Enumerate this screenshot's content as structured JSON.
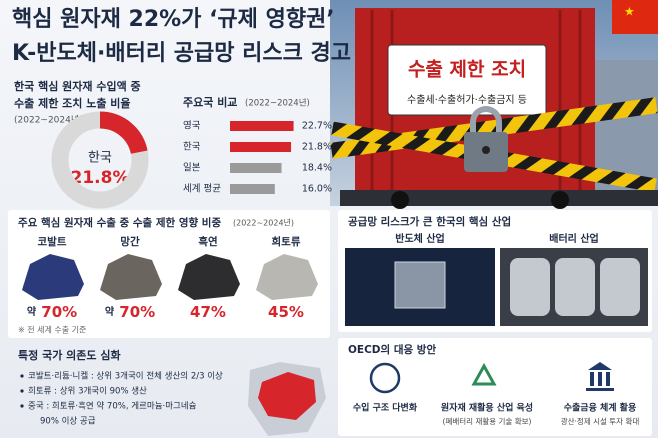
{
  "header": {
    "title_lines": [
      "핵심 원자재 22%가 ‘규제 영향권’",
      "K-반도체·배터리 공급망 리스크 경고"
    ]
  },
  "donut": {
    "label_lines": [
      "한국 핵심 원자재 수입액 중",
      "수출 제한 조치 노출 비율"
    ],
    "period": "(2022~2024년)",
    "center_label": "한국",
    "value": 21.8,
    "value_label": "21.8%",
    "max": 100,
    "color": "#d6262b",
    "track_color": "#d9d9d9"
  },
  "bar_chart": {
    "title": "주요국 비교",
    "period": "(2022~2024년)",
    "categories": [
      "영국",
      "한국",
      "일본",
      "세계 평균"
    ],
    "values": [
      22.7,
      21.8,
      18.4,
      16.0
    ],
    "value_labels": [
      "22.7%",
      "21.8%",
      "18.4%",
      "16.0%"
    ],
    "colors": [
      "#d6262b",
      "#d6262b",
      "#9a9a9a",
      "#9a9a9a"
    ],
    "xlim": [
      0,
      25
    ]
  },
  "minerals": {
    "title": "주요 핵심 원자재 수출 중 수출 제한 영향 비중",
    "period": "(2022~2024년)",
    "items": [
      {
        "name": "코발트",
        "prefix": "약",
        "share": "70%"
      },
      {
        "name": "망간",
        "prefix": "약",
        "share": "70%"
      },
      {
        "name": "흑연",
        "share": "47%"
      },
      {
        "name": "희토류",
        "share": "45%"
      }
    ],
    "note": "※ 전 세계 수출 기준"
  },
  "dependency": {
    "title": "특정 국가 의존도 심화",
    "bullets": [
      [
        "코발트·리튬·니켈 : 상위 3개국이 전체 생산의 2/3 이상"
      ],
      [
        "희토류 : 상위 3개국이 90% 생산"
      ],
      [
        "중국 : 희토류·흑연 약 70%, 게르마늄·마그네슘",
        "90% 이상 공급"
      ]
    ]
  },
  "photo": {
    "sign_title": "수출 제한 조치",
    "sign_subtitle": "수출세·수출허가·수출금지 등"
  },
  "supply_chain": {
    "title": "공급망 리스크가 큰 한국의 핵심 산업",
    "industries": [
      "반도체 산업",
      "배터리 산업"
    ]
  },
  "oecd": {
    "title": "OECD의 대응 방안",
    "measures": [
      {
        "label": "수입 구조 다변화"
      },
      {
        "label": "원자재 재활용 산업 육성",
        "detail": "(폐배터리 재활용 기술 확보)"
      },
      {
        "label": "수출금융 체계 활용",
        "detail": "광산·정제 시설 투자 확대"
      }
    ]
  }
}
